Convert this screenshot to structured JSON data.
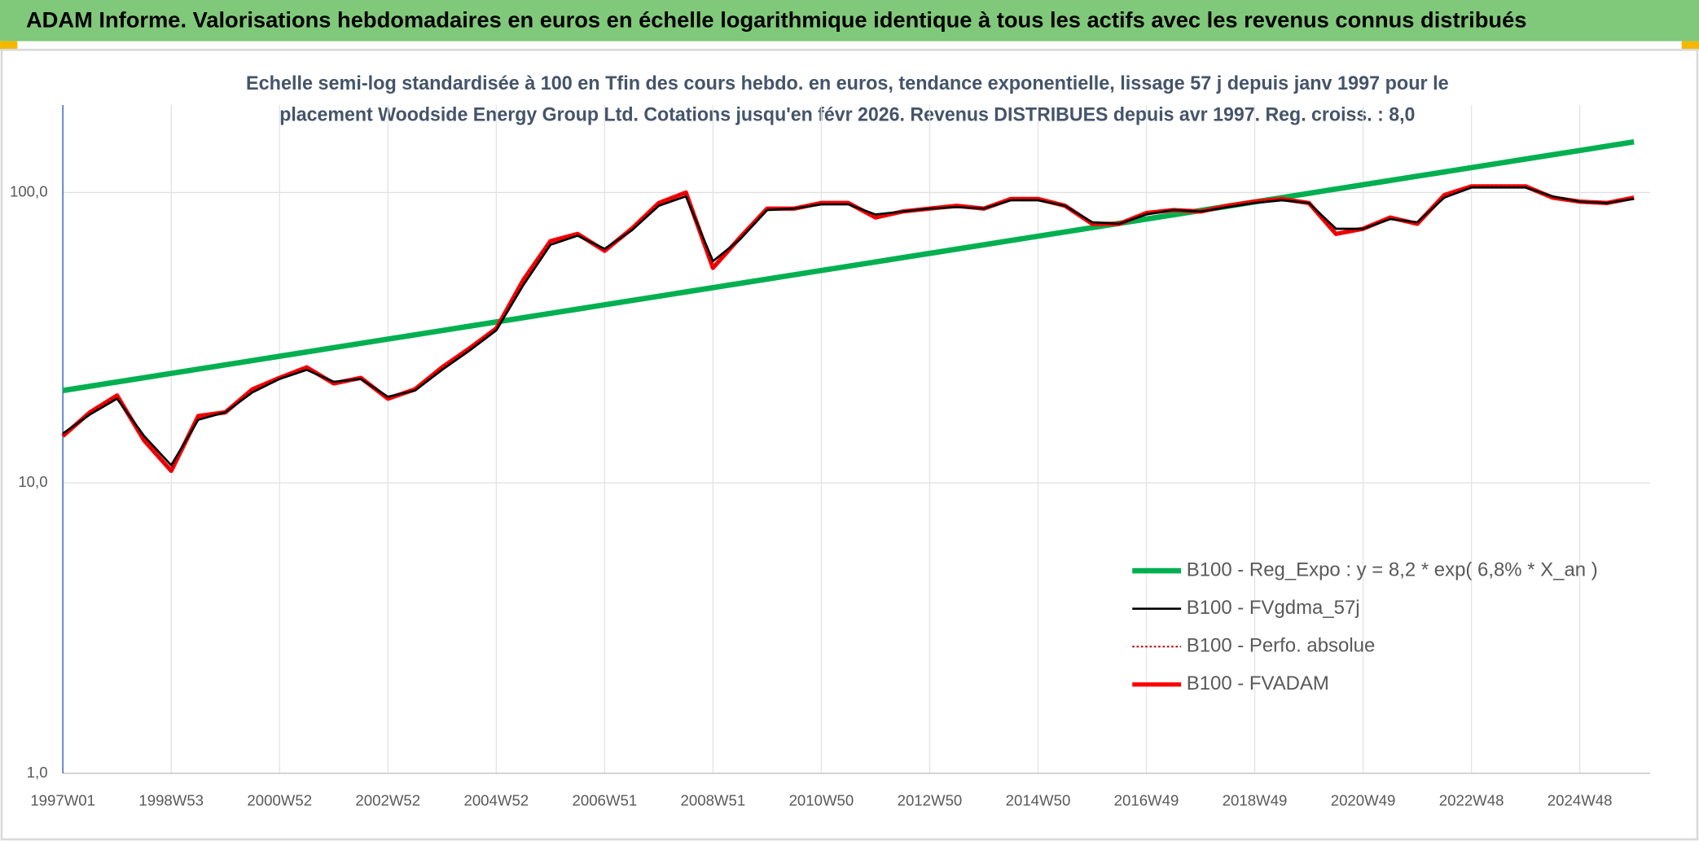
{
  "header": {
    "title": "ADAM Informe. Valorisations hebdomadaires en euros en échelle logarithmique identique à tous les actifs avec les revenus connus distribués"
  },
  "chart_data": {
    "type": "line",
    "title_lines": [
      "Echelle semi-log standardisée à 100 en Tfin des cours hebdo. en euros, tendance exponentielle, lissage 57 j depuis janv 1997 pour le",
      "placement Woodside Energy Group Ltd. Cotations jusqu'en févr 2026. Revenus DISTRIBUES depuis avr 1997. Reg. croiss. : 8,0"
    ],
    "categories": [
      "1997W01",
      null,
      null,
      null,
      "1998W53",
      null,
      null,
      null,
      "2000W52",
      null,
      null,
      null,
      "2002W52",
      null,
      null,
      null,
      "2004W52",
      null,
      null,
      null,
      "2006W51",
      null,
      null,
      null,
      "2008W51",
      null,
      null,
      null,
      "2010W50",
      null,
      null,
      null,
      "2012W50",
      null,
      null,
      null,
      "2014W50",
      null,
      null,
      null,
      "2016W49",
      null,
      null,
      null,
      "2018W49",
      null,
      null,
      null,
      "2020W49",
      null,
      null,
      null,
      "2022W48",
      null,
      null,
      null,
      "2024W48",
      null,
      null
    ],
    "ylog": true,
    "ylim": [
      1,
      200
    ],
    "yticks": [
      {
        "value": 1,
        "label": "1,0"
      },
      {
        "value": 10,
        "label": "10,0"
      },
      {
        "value": 100,
        "label": "100,0"
      }
    ],
    "grid": true,
    "legend": "lower right",
    "series": [
      {
        "name": "B100 - Reg_Expo : y = 8,2 * exp( 6,8% *  X_an )",
        "color": "#00b050",
        "style": "solid",
        "values": [
          20.8,
          21.52,
          22.26,
          23.03,
          23.83,
          24.65,
          25.5,
          26.38,
          27.3,
          28.24,
          29.22,
          30.23,
          31.27,
          32.35,
          33.47,
          34.63,
          35.83,
          37.07,
          38.35,
          39.67,
          41.04,
          42.46,
          43.93,
          45.45,
          47.02,
          48.65,
          50.33,
          52.07,
          53.87,
          55.73,
          57.66,
          59.65,
          61.71,
          63.85,
          66.05,
          68.34,
          70.7,
          73.14,
          75.67,
          78.29,
          81.0,
          83.8,
          86.69,
          89.69,
          92.79,
          96.0,
          99.32,
          102.8,
          106.3,
          110.0,
          113.8,
          117.7,
          121.8,
          126.0,
          130.4,
          134.9,
          139.5,
          144.4,
          149.4
        ]
      },
      {
        "name": "B100 - FVgdma_57j",
        "color": "#000000",
        "style": "solid",
        "values": [
          14.8,
          17.2,
          19.5,
          14.5,
          11.5,
          16.5,
          17.5,
          20.5,
          22.8,
          24.5,
          22.3,
          22.8,
          19.8,
          20.8,
          24.5,
          28.5,
          33.5,
          48,
          66,
          71,
          64,
          74,
          90,
          97,
          58,
          69,
          87,
          88,
          91,
          91,
          84,
          86,
          88,
          89,
          88,
          94,
          94,
          90,
          79,
          78,
          84,
          87,
          86,
          89,
          92,
          94,
          92,
          75,
          75,
          81,
          79,
          96,
          104,
          104,
          104,
          97,
          93,
          92,
          95
        ]
      },
      {
        "name": "B100 - Perfo. absolue",
        "color": "#c00000",
        "style": "dotted",
        "values": [
          14.5,
          17.5,
          20,
          14,
          11,
          17,
          17.5,
          21,
          23,
          25,
          22,
          23,
          19.5,
          21,
          25,
          29,
          34,
          50,
          68,
          72,
          63,
          75,
          92,
          100,
          55,
          70,
          88,
          88,
          92,
          92,
          82,
          86,
          88,
          90,
          88,
          95,
          95,
          90,
          78,
          78,
          85,
          87,
          86,
          90,
          93,
          95,
          92,
          72,
          75,
          82,
          78,
          98,
          105,
          105,
          105,
          96,
          93,
          92,
          96
        ]
      },
      {
        "name": "B100 - FVADAM",
        "color": "#ff0000",
        "style": "solid",
        "values": [
          14.5,
          17.5,
          20,
          14,
          11,
          17,
          17.5,
          21,
          23,
          25,
          22,
          23,
          19.5,
          21,
          25,
          29,
          34,
          50,
          68,
          72,
          63,
          75,
          92,
          100,
          55,
          70,
          88,
          88,
          92,
          92,
          82,
          86,
          88,
          90,
          88,
          95,
          95,
          90,
          78,
          78,
          85,
          87,
          86,
          90,
          93,
          95,
          92,
          72,
          75,
          82,
          78,
          98,
          105,
          105,
          105,
          96,
          93,
          92,
          96
        ]
      }
    ]
  }
}
